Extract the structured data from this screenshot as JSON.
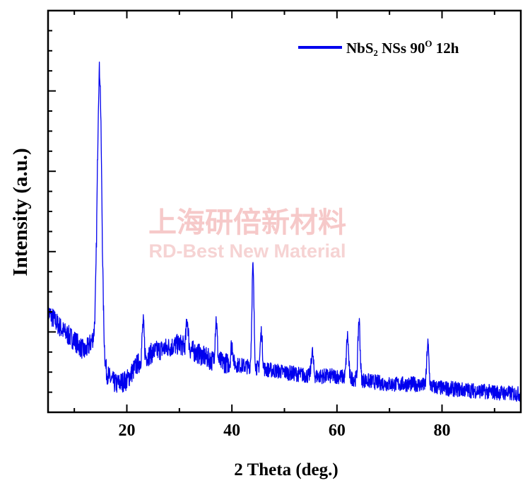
{
  "chart_data": {
    "type": "line",
    "xlabel": "2 Theta (deg.)",
    "ylabel": "Intensity (a.u.)",
    "xlim": [
      5,
      95
    ],
    "ylim": [
      0,
      100
    ],
    "x_ticks": [
      20,
      40,
      60,
      80
    ],
    "x_tick_labels": [
      "20",
      "40",
      "60",
      "80"
    ],
    "y_tick_labels_shown": false,
    "legend_position": "top-right",
    "series": [
      {
        "name": "NbS₂ NSs 90",
        "name_superscript": "O",
        "name_suffix": " 12h",
        "color": "#0000ee",
        "peaks": [
          {
            "x": 14.8,
            "y": 85
          },
          {
            "x": 23.1,
            "y": 22
          },
          {
            "x": 31.5,
            "y": 23
          },
          {
            "x": 37.0,
            "y": 23
          },
          {
            "x": 40.0,
            "y": 17
          },
          {
            "x": 44.0,
            "y": 36
          },
          {
            "x": 45.6,
            "y": 20
          },
          {
            "x": 55.3,
            "y": 15
          },
          {
            "x": 62.0,
            "y": 19
          },
          {
            "x": 64.2,
            "y": 23
          },
          {
            "x": 77.3,
            "y": 17
          }
        ],
        "baseline": [
          {
            "x": 5,
            "y": 25
          },
          {
            "x": 8,
            "y": 20
          },
          {
            "x": 10,
            "y": 18
          },
          {
            "x": 12,
            "y": 15
          },
          {
            "x": 13.5,
            "y": 18
          },
          {
            "x": 16,
            "y": 10
          },
          {
            "x": 17,
            "y": 8
          },
          {
            "x": 18,
            "y": 7
          },
          {
            "x": 20,
            "y": 8
          },
          {
            "x": 22,
            "y": 12
          },
          {
            "x": 25,
            "y": 15
          },
          {
            "x": 30,
            "y": 17
          },
          {
            "x": 33,
            "y": 15
          },
          {
            "x": 36,
            "y": 13
          },
          {
            "x": 40,
            "y": 12
          },
          {
            "x": 45,
            "y": 11
          },
          {
            "x": 50,
            "y": 10
          },
          {
            "x": 55,
            "y": 9
          },
          {
            "x": 60,
            "y": 9
          },
          {
            "x": 65,
            "y": 8
          },
          {
            "x": 70,
            "y": 7
          },
          {
            "x": 75,
            "y": 7
          },
          {
            "x": 80,
            "y": 6
          },
          {
            "x": 85,
            "y": 5.5
          },
          {
            "x": 90,
            "y": 5
          },
          {
            "x": 95,
            "y": 4.5
          }
        ]
      }
    ]
  },
  "watermark": {
    "line1": "上海研倍新材料",
    "line2": "RD-Best New Material"
  }
}
